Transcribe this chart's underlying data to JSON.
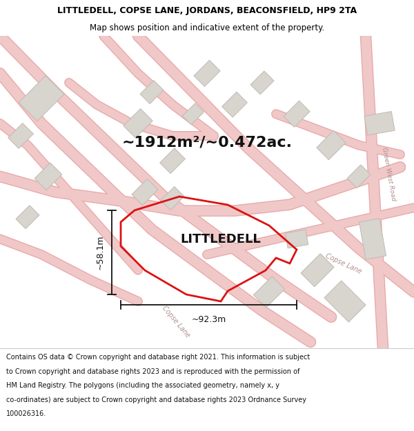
{
  "title_line1": "LITTLEDELL, COPSE LANE, JORDANS, BEACONSFIELD, HP9 2TA",
  "title_line2": "Map shows position and indicative extent of the property.",
  "area_text": "~1912m²/~0.472ac.",
  "label_text": "LITTLEDELL",
  "dim_width": "~92.3m",
  "dim_height": "~58.1m",
  "road_label_copse1": "Copse Lane",
  "road_label_copse2": "Copse Lane",
  "road_label_green": "Green West Road",
  "footer_lines": [
    "Contains OS data © Crown copyright and database right 2021. This information is subject",
    "to Crown copyright and database rights 2023 and is reproduced with the permission of",
    "HM Land Registry. The polygons (including the associated geometry, namely x, y",
    "co-ordinates) are subject to Crown copyright and database rights 2023 Ordnance Survey",
    "100026316."
  ],
  "map_bg": "#f8f6f4",
  "plot_stroke": "#dd1111",
  "plot_fill": "none",
  "road_color": "#f0c8c8",
  "road_edge": "#e8aaaa",
  "building_fill": "#d8d4ce",
  "building_stroke": "#c0bab4",
  "dim_color": "#111111",
  "title_bg": "#ffffff",
  "footer_bg": "#ffffff",
  "title_fontsize": 9.0,
  "subtitle_fontsize": 8.5,
  "area_fontsize": 16,
  "label_fontsize": 13,
  "dim_fontsize": 9,
  "footer_fontsize": 7.0
}
